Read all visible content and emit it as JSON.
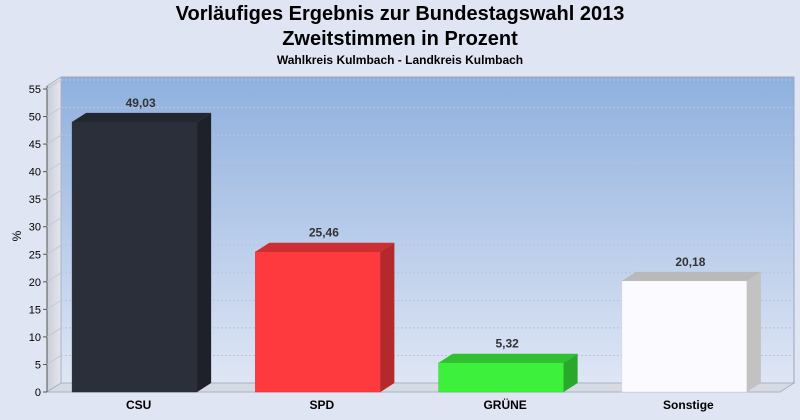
{
  "chart_data": {
    "type": "bar",
    "title": "Vorläufiges Ergebnis zur Bundestagswahl 2013",
    "subtitle": "Zweitstimmen in Prozent",
    "caption": "Wahlkreis Kulmbach - Landkreis Kulmbach",
    "xlabel": "",
    "ylabel": "%",
    "ylim": [
      0,
      55
    ],
    "yticks": [
      0,
      5,
      10,
      15,
      20,
      25,
      30,
      35,
      40,
      45,
      50,
      55
    ],
    "categories": [
      "CSU",
      "SPD",
      "GRÜNE",
      "Sonstige"
    ],
    "values": [
      49.03,
      25.46,
      5.32,
      20.18
    ],
    "value_labels": [
      "49,03",
      "25,46",
      "5,32",
      "20,18"
    ],
    "colors": [
      "#2b2f3a",
      "#ff3a3f",
      "#3cf03c",
      "#fbfbff"
    ],
    "grid": true,
    "legend": "none"
  }
}
